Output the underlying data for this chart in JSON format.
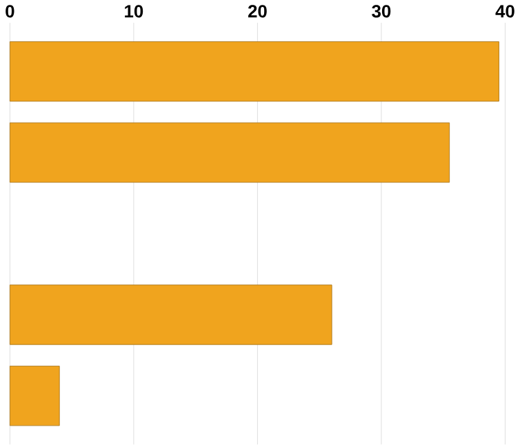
{
  "chart_data": {
    "type": "bar",
    "orientation": "horizontal",
    "categories": [
      null,
      null,
      null,
      null,
      null
    ],
    "values": [
      39.5,
      35.5,
      null,
      26,
      4
    ],
    "color": "#f0a41e",
    "xlim": [
      0,
      40
    ],
    "xticks": [
      0,
      10,
      20,
      30,
      40
    ],
    "grid": "x"
  }
}
